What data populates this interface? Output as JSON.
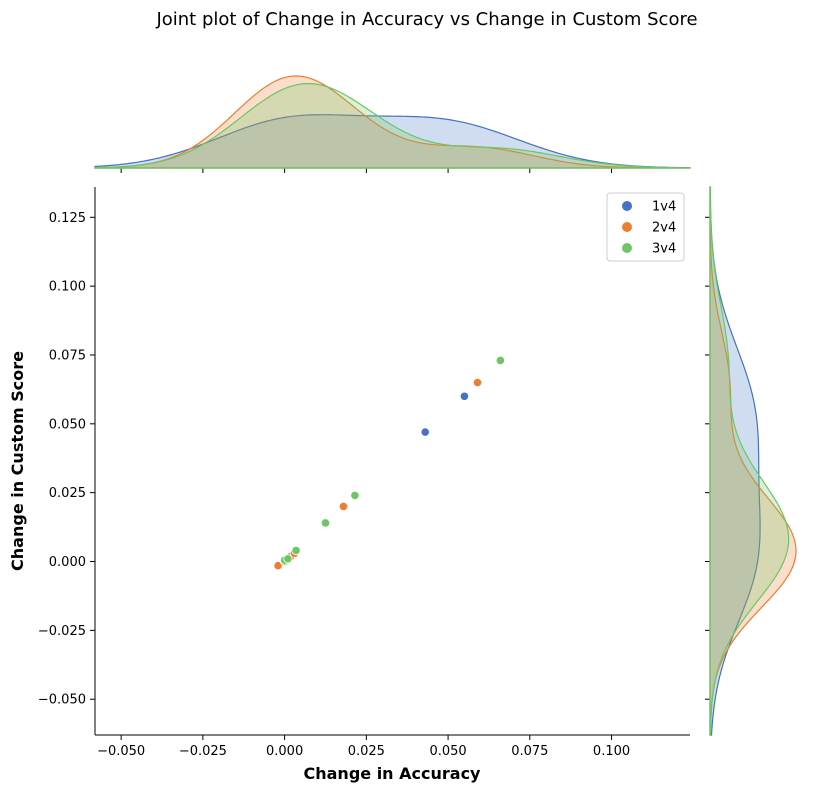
{
  "chart_data": {
    "type": "scatter",
    "title": "Joint plot of Change in Accuracy vs Change in Custom Score",
    "xlabel": "Change in Accuracy",
    "ylabel": "Change in Custom Score",
    "xlim": [
      -0.058,
      0.124
    ],
    "ylim": [
      -0.063,
      0.136
    ],
    "x_ticks": [
      -0.05,
      -0.025,
      0.0,
      0.025,
      0.05,
      0.075,
      0.1
    ],
    "x_tick_labels": [
      "−0.050",
      "−0.025",
      "0.000",
      "0.025",
      "0.050",
      "0.075",
      "0.100"
    ],
    "y_ticks": [
      -0.05,
      -0.025,
      0.0,
      0.025,
      0.05,
      0.075,
      0.1,
      0.125
    ],
    "y_tick_labels": [
      "−0.050",
      "−0.025",
      "0.000",
      "0.025",
      "0.050",
      "0.075",
      "0.100",
      "0.125"
    ],
    "grid": false,
    "legend_position": "top-right",
    "marginals": "kde",
    "series": [
      {
        "name": "1v4",
        "color": "#4472c4",
        "points": [
          [
            0.043,
            0.047
          ],
          [
            0.055,
            0.06
          ],
          [
            0.0,
            0.0
          ],
          [
            0.002,
            0.002
          ]
        ]
      },
      {
        "name": "2v4",
        "color": "#ed7d31",
        "points": [
          [
            0.059,
            0.065
          ],
          [
            0.018,
            0.02
          ],
          [
            0.002,
            0.002
          ],
          [
            -0.002,
            -0.0015
          ],
          [
            0.0,
            0.0
          ],
          [
            0.003,
            0.003
          ]
        ]
      },
      {
        "name": "3v4",
        "color": "#6bc763",
        "points": [
          [
            0.066,
            0.073
          ],
          [
            0.0215,
            0.024
          ],
          [
            0.0125,
            0.014
          ],
          [
            0.0035,
            0.004
          ],
          [
            0.0,
            0.0005
          ],
          [
            0.001,
            0.001
          ]
        ]
      }
    ]
  }
}
